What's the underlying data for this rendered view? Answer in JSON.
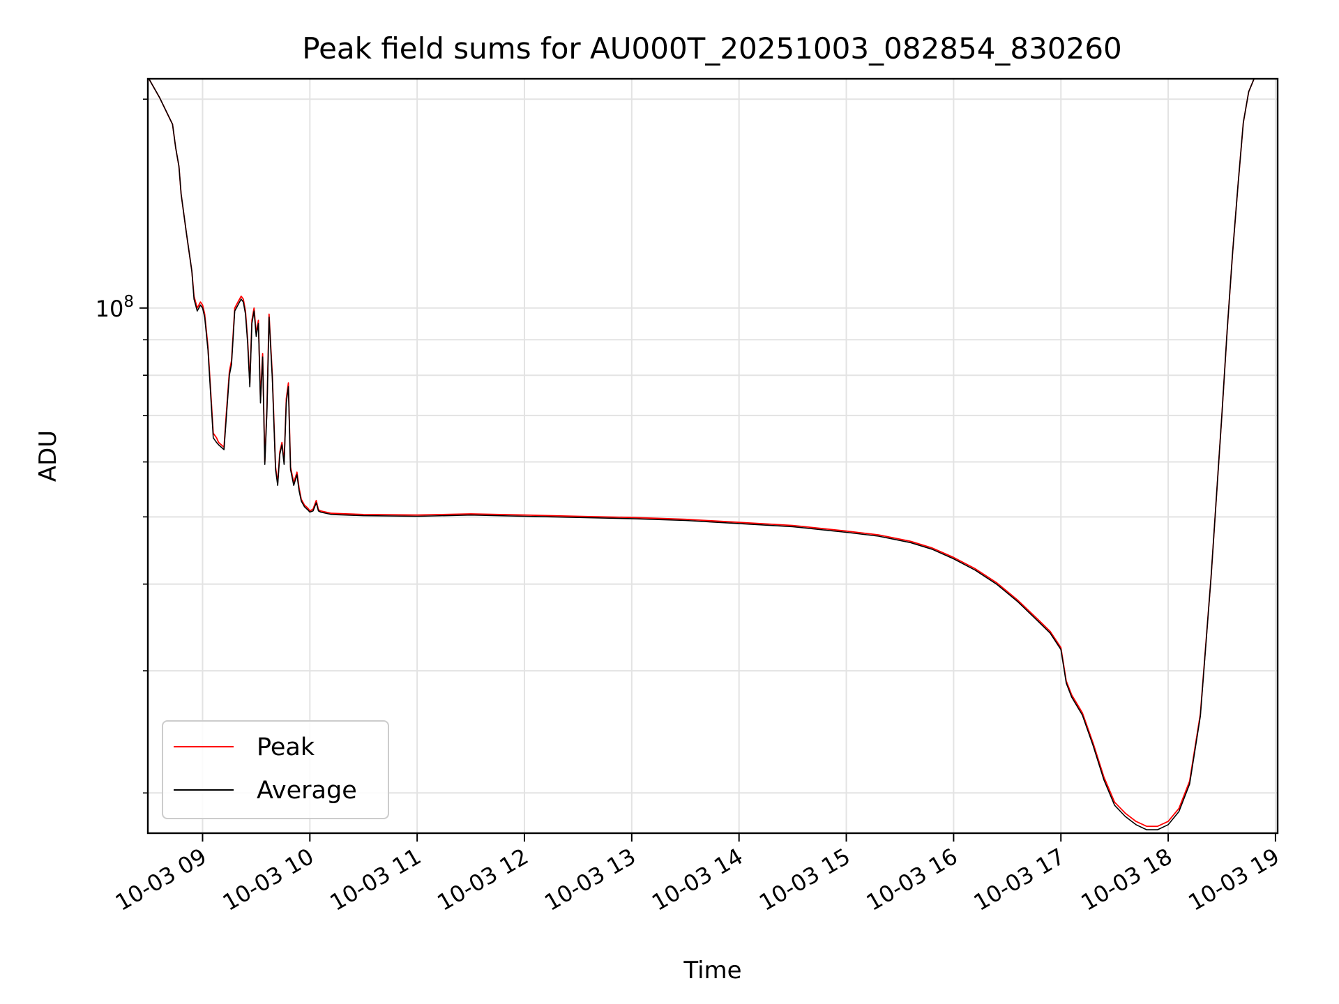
{
  "chart_data": {
    "type": "line",
    "title": "Peak field sums for AU000T_20251003_082854_830260",
    "xlabel": "Time",
    "ylabel": "ADU",
    "yscale": "log",
    "y_tick_major": {
      "value": 100000000,
      "base": "10",
      "exponent": "8"
    },
    "y_minor_ticks": [
      20000000,
      30000000,
      40000000,
      50000000,
      60000000,
      70000000,
      80000000,
      90000000,
      200000000
    ],
    "ylim": [
      17500000,
      214000000
    ],
    "xlim": [
      8.49,
      19.02
    ],
    "x_ticks": [
      {
        "hour": 9,
        "label": "10-03 09"
      },
      {
        "hour": 10,
        "label": "10-03 10"
      },
      {
        "hour": 11,
        "label": "10-03 11"
      },
      {
        "hour": 12,
        "label": "10-03 12"
      },
      {
        "hour": 13,
        "label": "10-03 13"
      },
      {
        "hour": 14,
        "label": "10-03 14"
      },
      {
        "hour": 15,
        "label": "10-03 15"
      },
      {
        "hour": 16,
        "label": "10-03 16"
      },
      {
        "hour": 17,
        "label": "10-03 17"
      },
      {
        "hour": 18,
        "label": "10-03 18"
      },
      {
        "hour": 19,
        "label": "10-03 19"
      }
    ],
    "grid": true,
    "legend_position": "lower-left",
    "series": [
      {
        "name": "Peak",
        "color": "#ff0000",
        "x": [
          8.5,
          8.6,
          8.72,
          8.75,
          8.78,
          8.8,
          8.85,
          8.9,
          8.92,
          8.95,
          8.98,
          9.0,
          9.02,
          9.05,
          9.1,
          9.13,
          9.15,
          9.2,
          9.22,
          9.25,
          9.27,
          9.3,
          9.33,
          9.36,
          9.38,
          9.4,
          9.42,
          9.44,
          9.46,
          9.48,
          9.5,
          9.52,
          9.54,
          9.56,
          9.58,
          9.6,
          9.62,
          9.65,
          9.68,
          9.7,
          9.72,
          9.74,
          9.76,
          9.78,
          9.8,
          9.82,
          9.85,
          9.88,
          9.9,
          9.92,
          9.95,
          9.98,
          10.0,
          10.03,
          10.06,
          10.08,
          10.1,
          10.2,
          10.5,
          11.0,
          11.5,
          12.0,
          12.5,
          13.0,
          13.5,
          14.0,
          14.5,
          15.0,
          15.3,
          15.6,
          15.8,
          16.0,
          16.2,
          16.4,
          16.6,
          16.8,
          16.9,
          17.0,
          17.02,
          17.05,
          17.1,
          17.2,
          17.3,
          17.4,
          17.5,
          17.6,
          17.7,
          17.8,
          17.9,
          18.0,
          18.1,
          18.2,
          18.3,
          18.4,
          18.5,
          18.55,
          18.6,
          18.65,
          18.7,
          18.75,
          18.8,
          18.85,
          18.9,
          18.95,
          19.0
        ],
        "values": [
          214000000,
          201000000,
          184000000,
          170000000,
          160000000,
          146000000,
          128000000,
          113000000,
          104000000,
          100000000,
          102000000,
          101000000,
          98000000,
          88000000,
          66000000,
          65000000,
          64000000,
          63000000,
          70000000,
          81000000,
          84000000,
          100000000,
          102000000,
          104000000,
          103000000,
          99000000,
          90000000,
          78000000,
          96000000,
          100000000,
          92000000,
          96000000,
          74000000,
          86000000,
          60000000,
          72000000,
          98000000,
          80000000,
          59000000,
          56000000,
          62000000,
          64000000,
          60000000,
          74000000,
          78000000,
          59000000,
          56000000,
          58000000,
          55000000,
          53000000,
          52000000,
          51500000,
          51000000,
          51300000,
          52800000,
          51200000,
          51000000,
          50600000,
          50400000,
          50300000,
          50500000,
          50300000,
          50100000,
          49900000,
          49600000,
          49100000,
          48600000,
          47700000,
          47100000,
          46100000,
          45100000,
          43700000,
          42100000,
          40200000,
          37900000,
          35400000,
          34200000,
          32400000,
          31000000,
          29000000,
          27700000,
          26100000,
          23600000,
          21100000,
          19400000,
          18700000,
          18200000,
          17900000,
          17900000,
          18200000,
          19000000,
          20800000,
          26000000,
          41000000,
          70000000,
          93000000,
          120000000,
          150000000,
          185000000,
          205000000,
          214000000,
          214000000,
          214000000,
          214000000,
          214000000
        ]
      },
      {
        "name": "Average",
        "color": "#000000",
        "x": [
          8.5,
          8.6,
          8.72,
          8.75,
          8.78,
          8.8,
          8.85,
          8.9,
          8.92,
          8.95,
          8.98,
          9.0,
          9.02,
          9.05,
          9.1,
          9.13,
          9.15,
          9.2,
          9.22,
          9.25,
          9.27,
          9.3,
          9.33,
          9.36,
          9.38,
          9.4,
          9.42,
          9.44,
          9.46,
          9.48,
          9.5,
          9.52,
          9.54,
          9.56,
          9.58,
          9.6,
          9.62,
          9.65,
          9.68,
          9.7,
          9.72,
          9.74,
          9.76,
          9.78,
          9.8,
          9.82,
          9.85,
          9.88,
          9.9,
          9.92,
          9.95,
          9.98,
          10.0,
          10.03,
          10.06,
          10.08,
          10.1,
          10.2,
          10.5,
          11.0,
          11.5,
          12.0,
          12.5,
          13.0,
          13.5,
          14.0,
          14.5,
          15.0,
          15.3,
          15.6,
          15.8,
          16.0,
          16.2,
          16.4,
          16.6,
          16.8,
          16.9,
          17.0,
          17.02,
          17.05,
          17.1,
          17.2,
          17.3,
          17.4,
          17.5,
          17.6,
          17.7,
          17.8,
          17.9,
          18.0,
          18.1,
          18.2,
          18.3,
          18.4,
          18.5,
          18.55,
          18.6,
          18.65,
          18.7,
          18.75,
          18.8,
          18.85,
          18.9,
          18.95,
          19.0
        ],
        "values": [
          214000000,
          201000000,
          184000000,
          170000000,
          160000000,
          146000000,
          128000000,
          113000000,
          103000000,
          99000000,
          101000000,
          100000000,
          97000000,
          87000000,
          65000000,
          64000000,
          63500000,
          62500000,
          69000000,
          80000000,
          83000000,
          99000000,
          101000000,
          103000000,
          102000000,
          98000000,
          89000000,
          77000000,
          95000000,
          99000000,
          91000000,
          95000000,
          73000000,
          85000000,
          59500000,
          71000000,
          97000000,
          79000000,
          58500000,
          55500000,
          61500000,
          63500000,
          59500000,
          73000000,
          77000000,
          58500000,
          55500000,
          57500000,
          54500000,
          52700000,
          51700000,
          51200000,
          50800000,
          51000000,
          52400000,
          51000000,
          50800000,
          50400000,
          50200000,
          50100000,
          50300000,
          50100000,
          49900000,
          49700000,
          49400000,
          48900000,
          48400000,
          47500000,
          46900000,
          45900000,
          44900000,
          43500000,
          41900000,
          40000000,
          37700000,
          35200000,
          34000000,
          32200000,
          30800000,
          28800000,
          27500000,
          25900000,
          23400000,
          20900000,
          19200000,
          18500000,
          18000000,
          17700000,
          17700000,
          18000000,
          18800000,
          20600000,
          25800000,
          41000000,
          70000000,
          93000000,
          120000000,
          150000000,
          185000000,
          205000000,
          214000000,
          214000000,
          214000000,
          214000000,
          214000000
        ]
      }
    ]
  }
}
